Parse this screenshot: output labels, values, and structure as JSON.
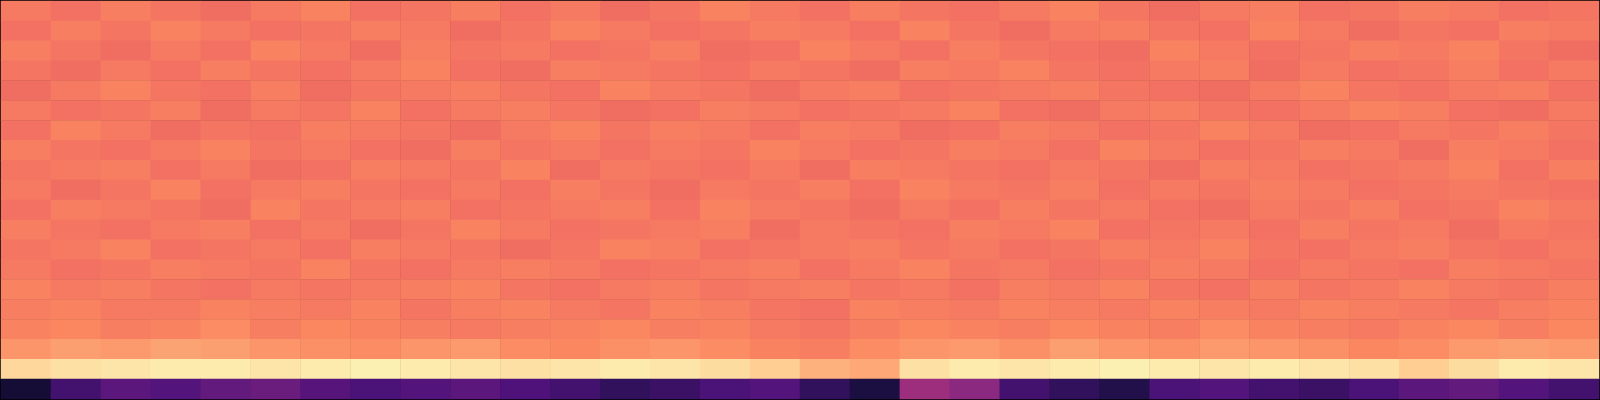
{
  "chart_data": {
    "type": "heatmap",
    "tick_labels": false,
    "zlim": [
      0,
      100
    ],
    "values": [
      [
        72,
        70,
        73,
        71,
        69,
        72,
        74,
        70,
        71,
        73,
        70,
        72,
        69,
        71,
        74,
        72,
        70,
        73,
        71,
        70,
        72,
        74,
        71,
        69,
        72,
        73,
        70,
        71,
        73,
        72,
        70,
        71
      ],
      [
        70,
        73,
        71,
        74,
        72,
        70,
        71,
        73,
        72,
        69,
        71,
        74,
        72,
        70,
        71,
        73,
        72,
        70,
        74,
        71,
        69,
        72,
        73,
        71,
        70,
        74,
        72,
        69,
        71,
        70,
        73,
        72
      ],
      [
        73,
        71,
        69,
        72,
        70,
        74,
        72,
        69,
        73,
        71,
        72,
        70,
        71,
        73,
        69,
        70,
        74,
        72,
        70,
        73,
        71,
        70,
        69,
        74,
        72,
        70,
        71,
        73,
        72,
        74,
        71,
        69
      ],
      [
        71,
        69,
        72,
        70,
        73,
        71,
        70,
        72,
        74,
        70,
        69,
        73,
        72,
        71,
        70,
        72,
        71,
        69,
        73,
        72,
        74,
        71,
        70,
        72,
        73,
        69,
        72,
        70,
        71,
        73,
        70,
        72
      ],
      [
        69,
        72,
        74,
        71,
        70,
        73,
        69,
        71,
        72,
        73,
        71,
        70,
        74,
        72,
        71,
        69,
        72,
        73,
        70,
        71,
        72,
        73,
        71,
        70,
        69,
        72,
        74,
        71,
        70,
        72,
        73,
        70
      ],
      [
        72,
        70,
        71,
        73,
        69,
        72,
        71,
        74,
        70,
        72,
        73,
        71,
        69,
        70,
        73,
        72,
        70,
        71,
        72,
        74,
        70,
        69,
        72,
        73,
        71,
        70,
        72,
        74,
        73,
        70,
        69,
        72
      ],
      [
        70,
        74,
        72,
        69,
        71,
        70,
        73,
        72,
        71,
        69,
        72,
        74,
        71,
        73,
        72,
        70,
        73,
        72,
        69,
        70,
        73,
        72,
        70,
        71,
        74,
        72,
        69,
        70,
        72,
        71,
        73,
        71
      ],
      [
        73,
        71,
        70,
        72,
        74,
        71,
        72,
        70,
        69,
        73,
        71,
        72,
        70,
        72,
        71,
        74,
        72,
        70,
        71,
        73,
        72,
        70,
        74,
        72,
        70,
        71,
        73,
        72,
        69,
        73,
        72,
        70
      ],
      [
        71,
        72,
        73,
        70,
        72,
        69,
        70,
        73,
        72,
        71,
        74,
        69,
        72,
        71,
        70,
        72,
        69,
        73,
        72,
        71,
        70,
        72,
        71,
        69,
        73,
        72,
        70,
        71,
        72,
        74,
        70,
        73
      ],
      [
        72,
        69,
        71,
        74,
        70,
        72,
        73,
        71,
        70,
        72,
        70,
        73,
        71,
        69,
        72,
        71,
        73,
        70,
        74,
        72,
        71,
        73,
        70,
        72,
        71,
        73,
        72,
        70,
        71,
        72,
        71,
        70
      ],
      [
        70,
        73,
        72,
        71,
        69,
        74,
        71,
        72,
        73,
        70,
        71,
        72,
        73,
        70,
        74,
        72,
        71,
        69,
        72,
        70,
        73,
        71,
        72,
        70,
        69,
        72,
        71,
        73,
        70,
        71,
        74,
        72
      ],
      [
        73,
        71,
        70,
        72,
        73,
        70,
        72,
        69,
        71,
        74,
        72,
        70,
        71,
        72,
        73,
        69,
        72,
        71,
        70,
        73,
        72,
        74,
        70,
        71,
        72,
        70,
        73,
        71,
        72,
        69,
        72,
        71
      ],
      [
        71,
        72,
        74,
        70,
        71,
        72,
        70,
        73,
        72,
        71,
        69,
        71,
        74,
        73,
        70,
        71,
        72,
        73,
        71,
        72,
        70,
        71,
        73,
        72,
        74,
        71,
        70,
        72,
        73,
        71,
        70,
        72
      ],
      [
        72,
        70,
        71,
        73,
        72,
        71,
        74,
        71,
        70,
        72,
        73,
        72,
        70,
        71,
        72,
        73,
        70,
        72,
        74,
        71,
        72,
        70,
        71,
        73,
        72,
        70,
        72,
        71,
        70,
        73,
        72,
        71
      ],
      [
        74,
        72,
        73,
        71,
        70,
        72,
        71,
        72,
        73,
        74,
        71,
        70,
        72,
        73,
        71,
        72,
        73,
        71,
        72,
        70,
        73,
        72,
        74,
        71,
        70,
        73,
        71,
        72,
        74,
        72,
        71,
        73
      ],
      [
        73,
        74,
        72,
        72,
        74,
        73,
        72,
        74,
        71,
        73,
        74,
        72,
        71,
        74,
        73,
        71,
        70,
        74,
        73,
        72,
        74,
        73,
        72,
        74,
        73,
        72,
        74,
        73,
        72,
        71,
        73,
        74
      ],
      [
        74,
        75,
        73,
        74,
        76,
        73,
        75,
        74,
        73,
        72,
        73,
        74,
        75,
        73,
        74,
        72,
        71,
        73,
        75,
        74,
        73,
        75,
        74,
        73,
        76,
        74,
        73,
        72,
        74,
        75,
        73,
        75
      ],
      [
        78,
        80,
        79,
        81,
        80,
        78,
        77,
        76,
        78,
        79,
        76,
        75,
        77,
        78,
        76,
        74,
        73,
        76,
        78,
        79,
        77,
        80,
        78,
        77,
        79,
        78,
        77,
        75,
        76,
        79,
        80,
        79
      ],
      [
        92,
        94,
        95,
        96,
        96,
        95,
        96,
        97,
        96,
        95,
        94,
        95,
        96,
        95,
        93,
        90,
        84,
        82,
        94,
        96,
        95,
        96,
        97,
        96,
        95,
        96,
        95,
        94,
        90,
        93,
        96,
        95
      ],
      [
        10,
        22,
        28,
        26,
        30,
        32,
        27,
        24,
        26,
        28,
        25,
        22,
        18,
        20,
        24,
        26,
        18,
        12,
        44,
        40,
        22,
        18,
        14,
        24,
        26,
        22,
        20,
        24,
        28,
        30,
        26,
        22
      ]
    ]
  }
}
